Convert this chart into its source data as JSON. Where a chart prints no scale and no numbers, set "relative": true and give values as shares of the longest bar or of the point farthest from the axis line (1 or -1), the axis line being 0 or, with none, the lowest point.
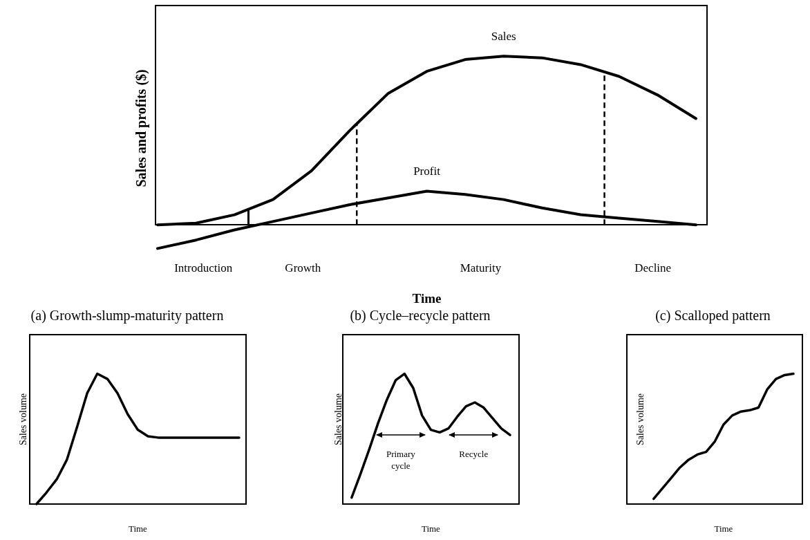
{
  "chart_data": [
    {
      "type": "line",
      "xlabel": "Time",
      "ylabel": "Sales and profits ($)",
      "relative": true,
      "legend": false,
      "marker": "none",
      "categories": [
        null,
        null,
        null,
        null,
        null,
        null,
        null,
        null,
        null,
        null,
        null,
        null,
        null,
        null,
        null
      ],
      "series": [
        {
          "name": "Sales",
          "color": "#000000",
          "values": [
            0,
            0.01,
            0.06,
            0.15,
            0.32,
            0.56,
            0.78,
            0.91,
            0.98,
            1,
            0.99,
            0.95,
            0.88,
            0.77,
            0.63
          ]
        },
        {
          "name": "Profit",
          "color": "#000000",
          "values": [
            -0.14,
            -0.09,
            -0.03,
            0.02,
            0.07,
            0.12,
            0.16,
            0.2,
            0.18,
            0.15,
            0.1,
            0.06,
            0.04,
            0.02,
            0
          ]
        }
      ],
      "annotations": [
        "Introduction",
        "Growth",
        "Maturity",
        "Decline"
      ]
    },
    {
      "type": "line",
      "title": "(a) Growth-slump-maturity pattern",
      "xlabel": "Time",
      "ylabel": "Sales volume",
      "relative": true,
      "legend": false,
      "marker": "none",
      "categories": [
        null,
        null,
        null,
        null,
        null,
        null,
        null,
        null,
        null,
        null,
        null,
        null,
        null,
        null,
        null,
        null,
        null,
        null,
        null,
        null,
        null
      ],
      "series": [
        {
          "color": "#000000",
          "values": [
            0,
            0.09,
            0.19,
            0.34,
            0.59,
            0.85,
            1,
            0.96,
            0.85,
            0.69,
            0.57,
            0.52,
            0.51,
            0.51,
            0.51,
            0.51,
            0.51,
            0.51,
            0.51,
            0.51,
            0.51
          ]
        }
      ]
    },
    {
      "type": "line",
      "title": "(b) Cycle–recycle pattern",
      "xlabel": "Time",
      "ylabel": "Sales volume",
      "relative": true,
      "legend": false,
      "marker": "none",
      "categories": [
        null,
        null,
        null,
        null,
        null,
        null,
        null,
        null,
        null,
        null,
        null,
        null,
        null,
        null,
        null,
        null,
        null,
        null,
        null
      ],
      "series": [
        {
          "color": "#000000",
          "values": [
            0.05,
            0.23,
            0.42,
            0.62,
            0.8,
            0.95,
            1,
            0.89,
            0.68,
            0.57,
            0.55,
            0.58,
            0.67,
            0.75,
            0.78,
            0.74,
            0.66,
            0.58,
            0.53
          ]
        }
      ],
      "annotations": [
        "Primary cycle",
        "Recycle"
      ]
    },
    {
      "type": "line",
      "title": "(c) Scalloped pattern",
      "xlabel": "Time",
      "ylabel": "Sales volume",
      "relative": true,
      "legend": false,
      "marker": "none",
      "categories": [
        null,
        null,
        null,
        null,
        null,
        null,
        null,
        null,
        null,
        null,
        null,
        null,
        null,
        null,
        null,
        null,
        null
      ],
      "series": [
        {
          "color": "#000000",
          "values": [
            0.04,
            0.12,
            0.2,
            0.28,
            0.34,
            0.38,
            0.4,
            0.48,
            0.61,
            0.68,
            0.71,
            0.72,
            0.74,
            0.88,
            0.96,
            0.99,
            1
          ]
        }
      ]
    }
  ]
}
